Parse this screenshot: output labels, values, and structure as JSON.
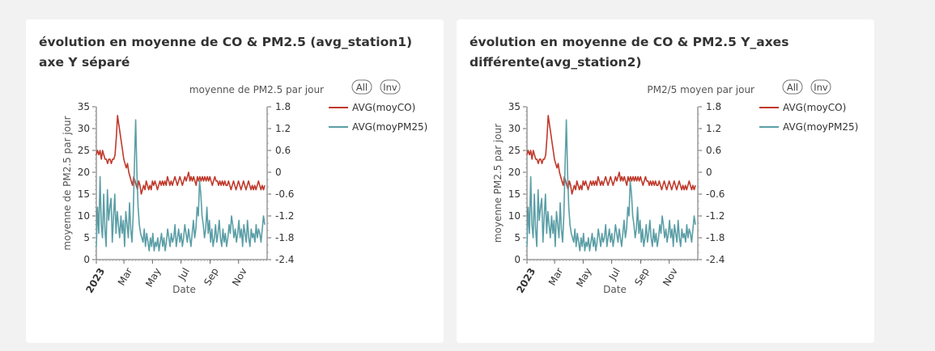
{
  "colors": {
    "background": "#f2f2f2",
    "card": "#ffffff",
    "co": "#c0392b",
    "pm25": "#5b9ea6",
    "text": "#333333",
    "axis": "#666666"
  },
  "cards": [
    {
      "title": "évolution en moyenne de CO & PM2.5 (avg_station1) axe Y séparé",
      "chart_data": {
        "type": "line",
        "title": "",
        "xlabel": "Date",
        "ylabel_left": "moyenne de PM2.5 par jour",
        "ylabel_right_top": "moyenne de PM2.5 par jour",
        "y_left_lim": [
          0,
          35
        ],
        "y_left_ticks": [
          "0",
          "5",
          "10",
          "15",
          "20",
          "25",
          "30",
          "35"
        ],
        "y_right_lim": [
          -2.4,
          1.8
        ],
        "y_right_ticks": [
          "-2.4",
          "-1.8",
          "-1.2",
          "-0.6",
          "0",
          "0.6",
          "1.2",
          "1.8"
        ],
        "x_ticks": [
          "2023",
          "Mar",
          "May",
          "Jul",
          "Sep",
          "Nov"
        ],
        "legend_position": "right",
        "legend_controls": [
          "All",
          "Inv"
        ],
        "series": [
          {
            "name": "AVG(moyCO)",
            "color": "#c0392b",
            "values": [
              24,
              25,
              24,
              25,
              23,
              25,
              24,
              23,
              23,
              22,
              23,
              23,
              22,
              23,
              23,
              24,
              28,
              33,
              31,
              29,
              27,
              25,
              23,
              22,
              21,
              22,
              20,
              19,
              18,
              17,
              19,
              18,
              17,
              16,
              18,
              17,
              15,
              16,
              17,
              16,
              18,
              17,
              16,
              17,
              16,
              18,
              17,
              18,
              17,
              16,
              17,
              18,
              17,
              18,
              17,
              18,
              17,
              19,
              18,
              17,
              18,
              17,
              18,
              19,
              18,
              17,
              18,
              19,
              18,
              17,
              18,
              19,
              18,
              19,
              20,
              18,
              19,
              18,
              19,
              18,
              17,
              19,
              18,
              19,
              18,
              19,
              18,
              19,
              18,
              19,
              18,
              19,
              18,
              17,
              18,
              19,
              18,
              18,
              17,
              18,
              17,
              18,
              17,
              18,
              17,
              17,
              18,
              17,
              16,
              17,
              18,
              17,
              16,
              17,
              18,
              17,
              16,
              17,
              18,
              17,
              16,
              17,
              18,
              17,
              16,
              17,
              16,
              17,
              16,
              17,
              18,
              17,
              16,
              17,
              16,
              17
            ]
          },
          {
            "name": "AVG(moyPM25)",
            "color": "#5b9ea6",
            "values": [
              3,
              12,
              6,
              19,
              8,
              5,
              15,
              7,
              3,
              16,
              9,
              12,
              14,
              4,
              10,
              15,
              6,
              11,
              8,
              5,
              10,
              6,
              9,
              3,
              11,
              8,
              5,
              13,
              7,
              4,
              10,
              22,
              32,
              20,
              12,
              8,
              6,
              5,
              4,
              7,
              3,
              6,
              4,
              2,
              5,
              3,
              6,
              2,
              4,
              3,
              5,
              2,
              4,
              6,
              3,
              5,
              2,
              4,
              7,
              5,
              3,
              6,
              4,
              5,
              8,
              3,
              5,
              7,
              4,
              6,
              3,
              5,
              8,
              6,
              4,
              7,
              5,
              3,
              6,
              9,
              5,
              7,
              12,
              10,
              18,
              15,
              10,
              8,
              5,
              7,
              12,
              6,
              9,
              4,
              7,
              3,
              5,
              8,
              4,
              6,
              9,
              5,
              3,
              7,
              4,
              6,
              3,
              5,
              8,
              6,
              10,
              8,
              5,
              7,
              4,
              6,
              9,
              5,
              7,
              3,
              8,
              6,
              4,
              9,
              5,
              3,
              7,
              5,
              6,
              4,
              8,
              5,
              7,
              6,
              4,
              7,
              10,
              8
            ]
          }
        ]
      }
    },
    {
      "title": "évolution en moyenne de CO & PM2.5 Y_axes différente(avg_station2)",
      "chart_data": {
        "type": "line",
        "title": "",
        "xlabel": "Date",
        "ylabel_left": "moyenne PM2.5 par jour",
        "ylabel_right_top": "PM2/5 moyen par  jour",
        "y_left_lim": [
          0,
          35
        ],
        "y_left_ticks": [
          "0",
          "5",
          "10",
          "15",
          "20",
          "25",
          "30",
          "35"
        ],
        "y_right_lim": [
          -2.4,
          1.8
        ],
        "y_right_ticks": [
          "-2.4",
          "-1.8",
          "-1.2",
          "-0.6",
          "0",
          "0.6",
          "1.2",
          "1.8"
        ],
        "x_ticks": [
          "2023",
          "Mar",
          "May",
          "Jul",
          "Sep",
          "Nov"
        ],
        "legend_position": "right",
        "legend_controls": [
          "All",
          "Inv"
        ],
        "series": [
          {
            "name": "AVG(moyCO)",
            "color": "#c0392b",
            "values": [
              24,
              25,
              24,
              25,
              23,
              25,
              24,
              23,
              23,
              22,
              23,
              23,
              22,
              23,
              23,
              24,
              28,
              33,
              31,
              29,
              27,
              25,
              23,
              22,
              21,
              22,
              20,
              19,
              18,
              17,
              19,
              18,
              17,
              16,
              18,
              17,
              15,
              16,
              17,
              16,
              18,
              17,
              16,
              17,
              16,
              18,
              17,
              18,
              17,
              16,
              17,
              18,
              17,
              18,
              17,
              18,
              17,
              19,
              18,
              17,
              18,
              17,
              18,
              19,
              18,
              17,
              18,
              19,
              18,
              17,
              18,
              19,
              18,
              19,
              20,
              18,
              19,
              18,
              19,
              18,
              17,
              19,
              18,
              19,
              18,
              19,
              18,
              19,
              18,
              19,
              18,
              19,
              18,
              17,
              18,
              19,
              18,
              18,
              17,
              18,
              17,
              18,
              17,
              18,
              17,
              17,
              18,
              17,
              16,
              17,
              18,
              17,
              16,
              17,
              18,
              17,
              16,
              17,
              18,
              17,
              16,
              17,
              18,
              17,
              16,
              17,
              16,
              17,
              16,
              17,
              18,
              17,
              16,
              17,
              16,
              17
            ]
          },
          {
            "name": "AVG(moyPM25)",
            "color": "#5b9ea6",
            "values": [
              3,
              12,
              6,
              19,
              8,
              5,
              15,
              7,
              3,
              16,
              9,
              12,
              14,
              4,
              10,
              15,
              6,
              11,
              8,
              5,
              10,
              6,
              9,
              3,
              11,
              8,
              5,
              13,
              7,
              4,
              10,
              22,
              32,
              20,
              12,
              8,
              6,
              5,
              4,
              7,
              3,
              6,
              4,
              2,
              5,
              3,
              6,
              2,
              4,
              3,
              5,
              2,
              4,
              6,
              3,
              5,
              2,
              4,
              7,
              5,
              3,
              6,
              4,
              5,
              8,
              3,
              5,
              7,
              4,
              6,
              3,
              5,
              8,
              6,
              4,
              7,
              5,
              3,
              6,
              9,
              5,
              7,
              12,
              10,
              18,
              15,
              10,
              8,
              5,
              7,
              12,
              6,
              9,
              4,
              7,
              3,
              5,
              8,
              4,
              6,
              9,
              5,
              3,
              7,
              4,
              6,
              3,
              5,
              8,
              6,
              10,
              8,
              5,
              7,
              4,
              6,
              9,
              5,
              7,
              3,
              8,
              6,
              4,
              9,
              5,
              3,
              7,
              5,
              6,
              4,
              8,
              5,
              7,
              6,
              4,
              7,
              10,
              8
            ]
          }
        ]
      }
    }
  ]
}
